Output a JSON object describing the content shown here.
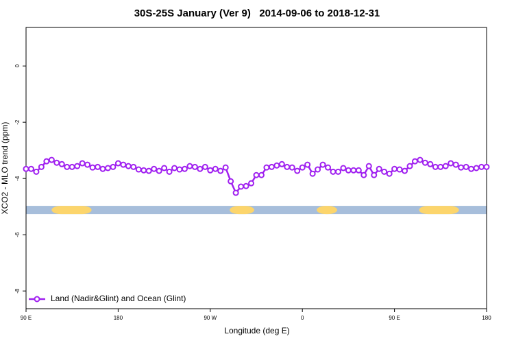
{
  "chart_data": {
    "type": "line",
    "title": "30S-25S January (Ver 9)   2014-09-06 to 2018-12-31",
    "x_label": "Longitude (deg E)",
    "y_label": "XCO2 - MLO trend (ppm)",
    "xlim": [
      90,
      540
    ],
    "xticks": [
      {
        "value": 90,
        "label": "90 E"
      },
      {
        "value": 180,
        "label": "180"
      },
      {
        "value": 270,
        "label": "90 W"
      },
      {
        "value": 360,
        "label": "0"
      },
      {
        "value": 450,
        "label": "90 E"
      },
      {
        "value": 540,
        "label": "180"
      }
    ],
    "ylim": [
      -8.63,
      1.37
    ],
    "yticks": [
      0,
      -2,
      -4,
      -6,
      -8
    ],
    "legend_position": "bottom-left",
    "x": [
      90,
      95,
      100,
      105,
      110,
      115,
      120,
      125,
      130,
      135,
      140,
      145,
      150,
      155,
      160,
      165,
      170,
      175,
      180,
      185,
      190,
      195,
      200,
      205,
      210,
      215,
      220,
      225,
      230,
      235,
      240,
      245,
      250,
      255,
      260,
      265,
      270,
      275,
      280,
      285,
      290,
      295,
      300,
      305,
      310,
      315,
      320,
      325,
      330,
      335,
      340,
      345,
      350,
      355,
      360,
      365,
      370,
      375,
      380,
      385,
      390,
      395,
      400,
      405,
      410,
      415,
      420,
      425,
      430,
      435,
      440,
      445,
      450,
      455,
      460,
      465,
      470,
      475,
      480,
      485,
      490,
      495,
      500,
      505,
      510,
      515,
      520,
      525,
      530,
      535,
      540
    ],
    "series": [
      {
        "name": "Land (Nadir&Glint) and Ocean (Glint)",
        "color": "#a020f0",
        "values": [
          -3.66,
          -3.66,
          -3.76,
          -3.59,
          -3.39,
          -3.34,
          -3.44,
          -3.49,
          -3.59,
          -3.59,
          -3.56,
          -3.46,
          -3.51,
          -3.61,
          -3.59,
          -3.66,
          -3.63,
          -3.59,
          -3.46,
          -3.51,
          -3.56,
          -3.59,
          -3.68,
          -3.71,
          -3.73,
          -3.66,
          -3.73,
          -3.63,
          -3.76,
          -3.63,
          -3.68,
          -3.66,
          -3.56,
          -3.59,
          -3.66,
          -3.59,
          -3.71,
          -3.66,
          -3.73,
          -3.61,
          -4.1,
          -4.51,
          -4.29,
          -4.27,
          -4.17,
          -3.88,
          -3.88,
          -3.61,
          -3.59,
          -3.54,
          -3.49,
          -3.59,
          -3.61,
          -3.73,
          -3.61,
          -3.51,
          -3.83,
          -3.68,
          -3.51,
          -3.61,
          -3.76,
          -3.76,
          -3.63,
          -3.71,
          -3.71,
          -3.71,
          -3.88,
          -3.56,
          -3.88,
          -3.66,
          -3.76,
          -3.83,
          -3.66,
          -3.68,
          -3.73,
          -3.56,
          -3.39,
          -3.34,
          -3.44,
          -3.49,
          -3.59,
          -3.59,
          -3.56,
          -3.46,
          -3.51,
          -3.61,
          -3.59,
          -3.66,
          -3.63,
          -3.59,
          -3.59
        ]
      }
    ],
    "surface_band": {
      "y": -5.12,
      "ocean_color": "#a7bedb",
      "land_color": "#fcd56c",
      "land": [
        [
          115,
          154
        ],
        [
          289,
          313
        ],
        [
          374,
          394
        ],
        [
          474,
          513
        ]
      ]
    }
  }
}
